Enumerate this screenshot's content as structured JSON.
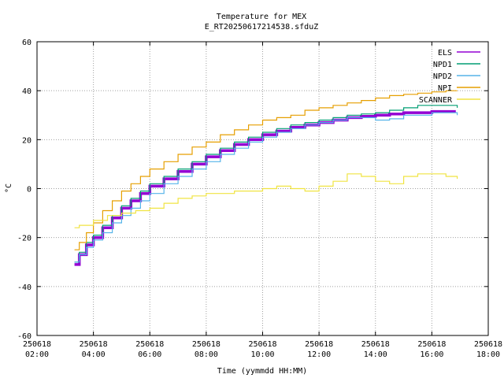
{
  "chart_data": {
    "type": "line",
    "title": "Temperature for MEX",
    "subtitle": "E_RT20250617214538.sfduZ",
    "xlabel": "Time (yymmdd HH:MM)",
    "ylabel": "°C",
    "xlim": [
      2,
      18
    ],
    "ylim": [
      -60,
      60
    ],
    "grid": true,
    "legend_position": "top-right",
    "x_ticks": [
      {
        "value": 2,
        "line1": "250618",
        "line2": "02:00"
      },
      {
        "value": 4,
        "line1": "250618",
        "line2": "04:00"
      },
      {
        "value": 6,
        "line1": "250618",
        "line2": "06:00"
      },
      {
        "value": 8,
        "line1": "250618",
        "line2": "08:00"
      },
      {
        "value": 10,
        "line1": "250618",
        "line2": "10:00"
      },
      {
        "value": 12,
        "line1": "250618",
        "line2": "12:00"
      },
      {
        "value": 14,
        "line1": "250618",
        "line2": "14:00"
      },
      {
        "value": 16,
        "line1": "250618",
        "line2": "16:00"
      },
      {
        "value": 18,
        "line1": "250618",
        "line2": "18:00"
      }
    ],
    "y_ticks": [
      {
        "value": -60,
        "label": "-60"
      },
      {
        "value": -40,
        "label": "-40"
      },
      {
        "value": -20,
        "label": "-20"
      },
      {
        "value": 0,
        "label": "0"
      },
      {
        "value": 20,
        "label": "20"
      },
      {
        "value": 40,
        "label": "40"
      },
      {
        "value": 60,
        "label": "60"
      }
    ],
    "series": [
      {
        "name": "ELS",
        "color": "#9400d3",
        "width": 3.5,
        "x": [
          3.33,
          3.5,
          3.75,
          4.0,
          4.33,
          4.67,
          5.0,
          5.33,
          5.67,
          6.0,
          6.5,
          7.0,
          7.5,
          8.0,
          8.5,
          9.0,
          9.5,
          10.0,
          10.5,
          11.0,
          11.5,
          12.0,
          12.5,
          13.0,
          13.5,
          14.0,
          14.5,
          15.0,
          15.5,
          16.0,
          16.5,
          16.85
        ],
        "y": [
          -31,
          -27,
          -23,
          -20,
          -16,
          -12,
          -8,
          -5,
          -2,
          1,
          4,
          7,
          10,
          13,
          15.5,
          18,
          20,
          22,
          23.5,
          25,
          26,
          27,
          28,
          29,
          29.5,
          30,
          30.5,
          31,
          31,
          31.5,
          31.5,
          31.5
        ]
      },
      {
        "name": "NPD1",
        "color": "#009e73",
        "width": 1.2,
        "x": [
          3.33,
          3.5,
          3.75,
          4.0,
          4.33,
          4.67,
          5.0,
          5.33,
          5.67,
          6.0,
          6.5,
          7.0,
          7.5,
          8.0,
          8.5,
          9.0,
          9.5,
          10.0,
          10.5,
          11.0,
          11.5,
          12.0,
          12.5,
          13.0,
          13.5,
          14.0,
          14.5,
          15.0,
          15.5,
          16.0,
          16.5,
          16.9
        ],
        "y": [
          -30,
          -26,
          -22,
          -19,
          -15,
          -11,
          -7,
          -4,
          -1,
          2,
          5,
          8,
          11,
          14,
          16.5,
          19,
          21,
          23,
          24.5,
          26,
          27,
          28,
          29,
          30,
          30.5,
          31,
          32,
          33,
          34,
          34,
          34,
          33
        ]
      },
      {
        "name": "NPD2",
        "color": "#56b4e9",
        "width": 1.2,
        "x": [
          3.33,
          3.5,
          3.75,
          4.0,
          4.33,
          4.67,
          5.0,
          5.33,
          5.67,
          6.0,
          6.5,
          7.0,
          7.5,
          8.0,
          8.5,
          9.0,
          9.5,
          10.0,
          10.5,
          11.0,
          11.5,
          12.0,
          12.5,
          13.0,
          13.5,
          14.0,
          14.5,
          15.0,
          15.5,
          16.0,
          16.5,
          16.9
        ],
        "y": [
          -30,
          -27,
          -24,
          -21,
          -18,
          -14,
          -11,
          -8,
          -5,
          -2,
          2,
          5,
          8,
          11,
          14,
          16.5,
          19,
          21,
          23,
          24.5,
          26,
          27,
          28,
          29,
          29,
          28,
          28.5,
          30,
          30,
          31,
          31,
          30
        ]
      },
      {
        "name": "NPI",
        "color": "#e69f00",
        "width": 1.2,
        "x": [
          3.33,
          3.5,
          3.75,
          4.0,
          4.33,
          4.67,
          5.0,
          5.33,
          5.67,
          6.0,
          6.5,
          7.0,
          7.5,
          8.0,
          8.5,
          9.0,
          9.5,
          10.0,
          10.5,
          11.0,
          11.5,
          12.0,
          12.5,
          13.0,
          13.5,
          14.0,
          14.5,
          15.0,
          15.5,
          16.0,
          16.5,
          16.9
        ],
        "y": [
          -25,
          -22,
          -18,
          -14,
          -9,
          -5,
          -1,
          2,
          5,
          8,
          11,
          14,
          17,
          19,
          22,
          24,
          26,
          28,
          29,
          30,
          32,
          33,
          34,
          35,
          36,
          37,
          38,
          38.5,
          39,
          39.5,
          40,
          40
        ]
      },
      {
        "name": "SCANNER",
        "color": "#f0e442",
        "width": 1.2,
        "x": [
          3.33,
          3.5,
          4.0,
          4.5,
          5.0,
          5.5,
          6.0,
          6.5,
          7.0,
          7.5,
          8.0,
          8.5,
          9.0,
          9.5,
          10.0,
          10.5,
          11.0,
          11.5,
          12.0,
          12.5,
          13.0,
          13.5,
          14.0,
          14.5,
          15.0,
          15.5,
          16.0,
          16.5,
          16.9
        ],
        "y": [
          -16,
          -15,
          -13,
          -11,
          -10,
          -9,
          -8,
          -6,
          -4,
          -3,
          -2,
          -2,
          -1,
          -1,
          0,
          1,
          0,
          -1,
          1,
          3,
          6,
          5,
          3,
          2,
          5,
          6,
          6,
          5,
          4
        ]
      }
    ]
  }
}
